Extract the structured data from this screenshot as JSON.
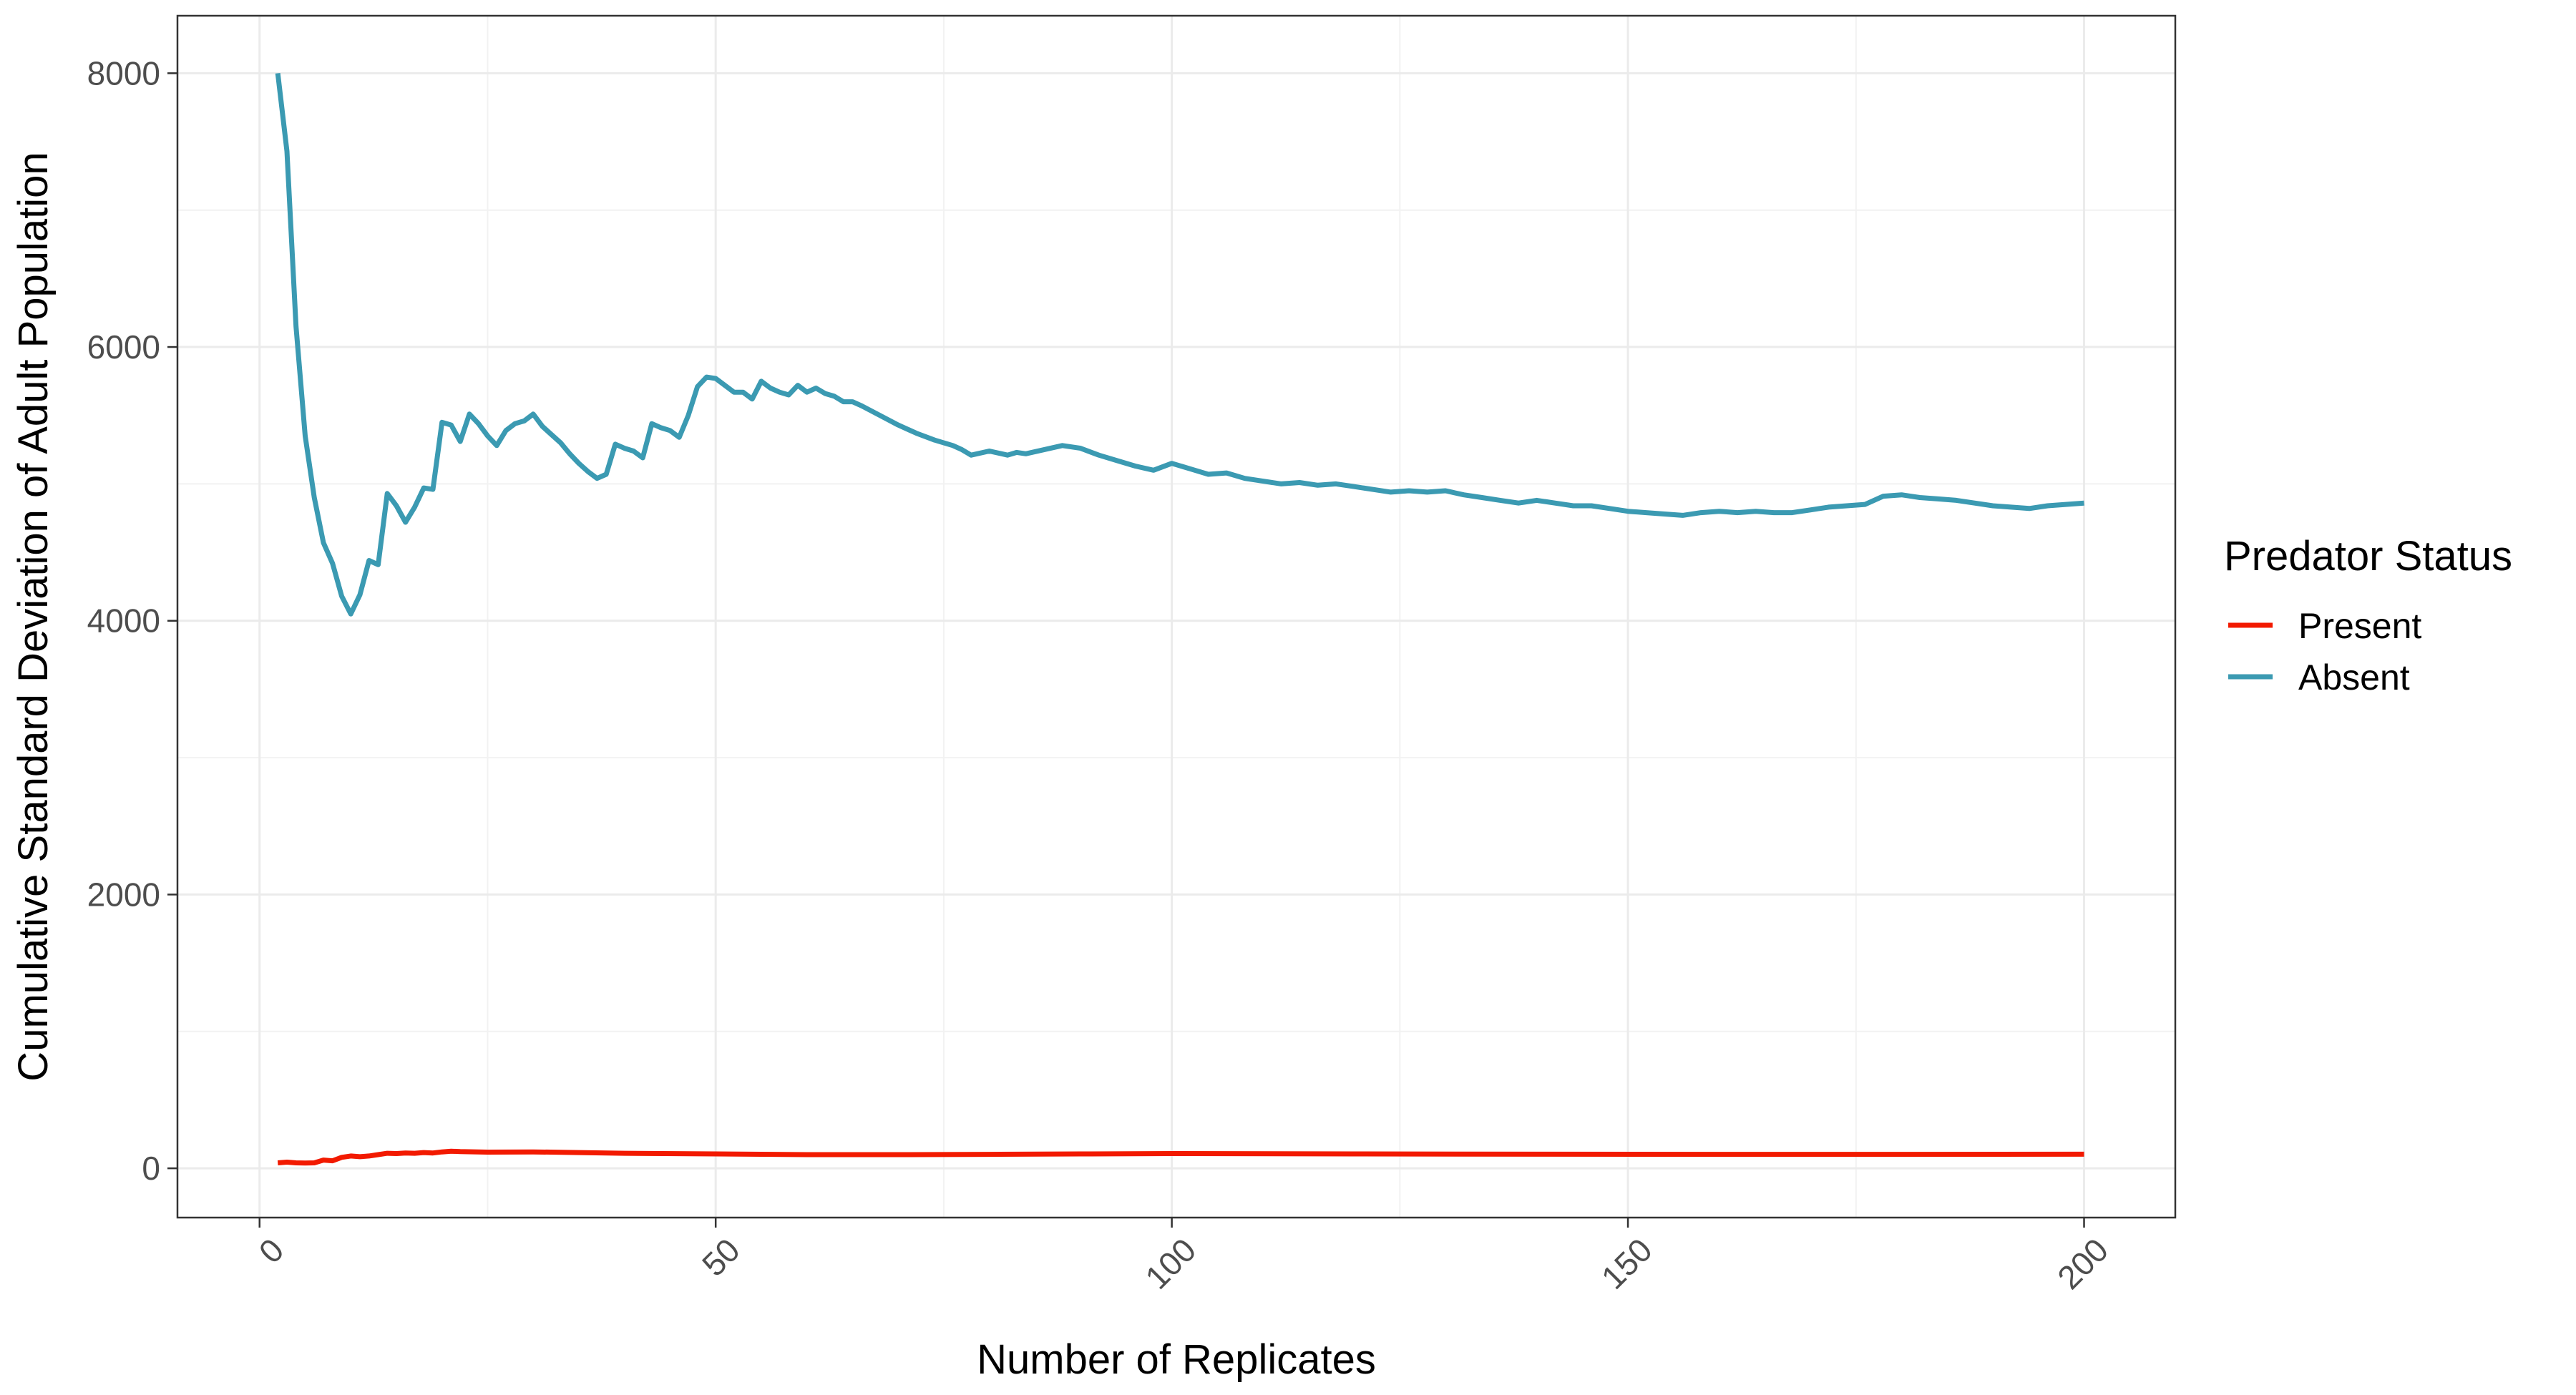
{
  "chart_data": {
    "type": "line",
    "xlabel": "Number of Replicates",
    "ylabel": "Cumulative Standard Deviation of Adult Population",
    "xlim": [
      -9,
      210
    ],
    "ylim": [
      -360,
      8420
    ],
    "x_ticks": [
      0,
      50,
      100,
      150,
      200
    ],
    "x_tick_labels": [
      "0",
      "50",
      "100",
      "150",
      "200"
    ],
    "y_ticks": [
      0,
      2000,
      4000,
      6000,
      8000
    ],
    "y_tick_labels": [
      "0",
      "2000",
      "4000",
      "6000",
      "8000"
    ],
    "grid": true,
    "legend": {
      "title": "Predator Status",
      "position": "right"
    },
    "series": [
      {
        "name": "Present",
        "color": "#f21a00",
        "x": [
          2,
          3,
          4,
          5,
          6,
          7,
          8,
          9,
          10,
          11,
          12,
          13,
          14,
          15,
          16,
          17,
          18,
          19,
          20,
          21,
          22,
          25,
          30,
          35,
          40,
          50,
          60,
          70,
          80,
          90,
          100,
          120,
          140,
          160,
          180,
          200
        ],
        "y": [
          40,
          45,
          40,
          38,
          40,
          60,
          55,
          80,
          90,
          85,
          90,
          100,
          110,
          108,
          112,
          110,
          115,
          112,
          120,
          125,
          122,
          118,
          120,
          115,
          110,
          105,
          100,
          100,
          102,
          105,
          108,
          105,
          103,
          102,
          102,
          103
        ]
      },
      {
        "name": "Absent",
        "color": "#3b9ab2",
        "x": [
          2,
          3,
          4,
          5,
          6,
          7,
          8,
          9,
          10,
          11,
          12,
          13,
          14,
          15,
          16,
          17,
          18,
          19,
          20,
          21,
          22,
          23,
          24,
          25,
          26,
          27,
          28,
          29,
          30,
          31,
          32,
          33,
          34,
          35,
          36,
          37,
          38,
          39,
          40,
          41,
          42,
          43,
          44,
          45,
          46,
          47,
          48,
          49,
          50,
          51,
          52,
          53,
          54,
          55,
          56,
          57,
          58,
          59,
          60,
          61,
          62,
          63,
          64,
          65,
          66,
          68,
          70,
          72,
          74,
          76,
          77,
          78,
          80,
          82,
          83,
          84,
          86,
          88,
          90,
          92,
          94,
          96,
          98,
          100,
          102,
          104,
          106,
          108,
          110,
          112,
          114,
          116,
          118,
          120,
          122,
          124,
          126,
          128,
          130,
          132,
          134,
          136,
          138,
          140,
          142,
          144,
          146,
          148,
          150,
          152,
          154,
          156,
          158,
          160,
          162,
          164,
          166,
          168,
          170,
          172,
          174,
          176,
          178,
          180,
          182,
          184,
          186,
          188,
          190,
          192,
          194,
          196,
          198,
          200
        ],
        "y": [
          8000,
          7430,
          6150,
          5350,
          4900,
          4570,
          4420,
          4180,
          4050,
          4190,
          4440,
          4410,
          4930,
          4840,
          4720,
          4830,
          4970,
          4960,
          5450,
          5430,
          5310,
          5510,
          5440,
          5350,
          5280,
          5390,
          5440,
          5460,
          5510,
          5420,
          5360,
          5300,
          5220,
          5150,
          5090,
          5040,
          5070,
          5290,
          5260,
          5240,
          5190,
          5440,
          5410,
          5390,
          5340,
          5500,
          5710,
          5780,
          5770,
          5720,
          5670,
          5670,
          5620,
          5750,
          5700,
          5670,
          5650,
          5720,
          5670,
          5700,
          5660,
          5640,
          5600,
          5600,
          5570,
          5500,
          5430,
          5370,
          5320,
          5280,
          5250,
          5210,
          5240,
          5210,
          5230,
          5220,
          5250,
          5280,
          5260,
          5210,
          5170,
          5130,
          5100,
          5150,
          5110,
          5070,
          5080,
          5040,
          5020,
          5000,
          5010,
          4990,
          5000,
          4980,
          4960,
          4940,
          4950,
          4940,
          4950,
          4920,
          4900,
          4880,
          4860,
          4880,
          4860,
          4840,
          4840,
          4820,
          4800,
          4790,
          4780,
          4770,
          4790,
          4800,
          4790,
          4800,
          4790,
          4790,
          4810,
          4830,
          4840,
          4850,
          4910,
          4920,
          4900,
          4890,
          4880,
          4860,
          4840,
          4830,
          4820,
          4840,
          4850,
          4860
        ]
      }
    ]
  }
}
